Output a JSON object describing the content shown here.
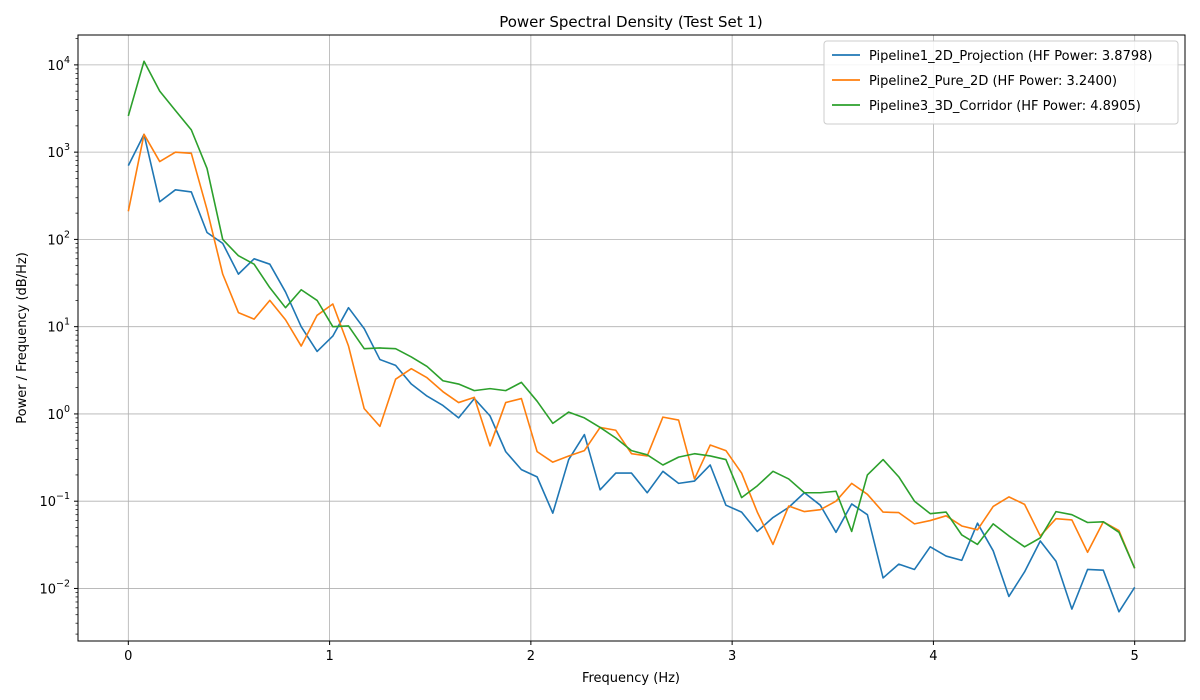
{
  "chart_data": {
    "type": "line",
    "title": "Power Spectral Density (Test Set 1)",
    "xlabel": "Frequency (Hz)",
    "ylabel": "Power / Frequency (dB/Hz)",
    "xlim": [
      -0.25,
      5.25
    ],
    "ylim": [
      0.0025,
      22000
    ],
    "yscale": "log",
    "grid": true,
    "legend_position": "top-right",
    "x_ticks": [
      0,
      1,
      2,
      3,
      4,
      5
    ],
    "x_tick_labels": [
      "0",
      "1",
      "2",
      "3",
      "4",
      "5"
    ],
    "y_ticks": [
      0.01,
      0.1,
      1,
      10,
      100,
      1000,
      10000
    ],
    "y_tick_labels": [
      {
        "base": "10",
        "exp": "−2"
      },
      {
        "base": "10",
        "exp": "−1"
      },
      {
        "base": "10",
        "exp": "0"
      },
      {
        "base": "10",
        "exp": "1"
      },
      {
        "base": "10",
        "exp": "2"
      },
      {
        "base": "10",
        "exp": "3"
      },
      {
        "base": "10",
        "exp": "4"
      }
    ],
    "x": [
      0,
      0.078,
      0.156,
      0.234,
      0.313,
      0.391,
      0.469,
      0.547,
      0.625,
      0.703,
      0.781,
      0.859,
      0.938,
      1.016,
      1.094,
      1.172,
      1.25,
      1.328,
      1.406,
      1.484,
      1.563,
      1.641,
      1.719,
      1.797,
      1.875,
      1.953,
      2.031,
      2.109,
      2.188,
      2.266,
      2.344,
      2.422,
      2.5,
      2.578,
      2.656,
      2.734,
      2.813,
      2.891,
      2.969,
      3.047,
      3.125,
      3.203,
      3.281,
      3.359,
      3.438,
      3.516,
      3.594,
      3.672,
      3.75,
      3.828,
      3.906,
      3.984,
      4.063,
      4.141,
      4.219,
      4.297,
      4.375,
      4.453,
      4.531,
      4.609,
      4.688,
      4.766,
      4.844,
      4.922,
      5.0
    ],
    "series": [
      {
        "name": "Pipeline1_2D_Projection (HF Power: 3.8798)",
        "color": "#1f77b4",
        "values": [
          700,
          1600,
          270,
          370,
          350,
          120,
          90,
          40,
          60,
          52,
          25,
          10,
          5.2,
          7.8,
          16.5,
          9.5,
          4.2,
          3.6,
          2.2,
          1.6,
          1.25,
          0.9,
          1.5,
          0.95,
          0.37,
          0.23,
          0.19,
          0.073,
          0.3,
          0.58,
          0.135,
          0.21,
          0.21,
          0.125,
          0.22,
          0.16,
          0.17,
          0.26,
          0.09,
          0.075,
          0.045,
          0.065,
          0.085,
          0.125,
          0.09,
          0.044,
          0.093,
          0.07,
          0.0132,
          0.019,
          0.0165,
          0.03,
          0.0235,
          0.021,
          0.056,
          0.027,
          0.0081,
          0.0155,
          0.035,
          0.0205,
          0.0058,
          0.0165,
          0.0162,
          0.0054,
          0.0103
        ]
      },
      {
        "name": "Pipeline2_Pure_2D (HF Power: 3.2400)",
        "color": "#ff7f0e",
        "values": [
          210,
          1600,
          780,
          1000,
          970,
          220,
          40,
          14.5,
          12.2,
          20,
          12,
          6,
          13.5,
          18.2,
          6,
          1.15,
          0.72,
          2.5,
          3.3,
          2.6,
          1.8,
          1.35,
          1.55,
          0.43,
          1.35,
          1.5,
          0.37,
          0.28,
          0.33,
          0.38,
          0.7,
          0.65,
          0.35,
          0.33,
          0.92,
          0.85,
          0.18,
          0.44,
          0.38,
          0.21,
          0.075,
          0.032,
          0.088,
          0.076,
          0.08,
          0.1,
          0.16,
          0.12,
          0.075,
          0.074,
          0.055,
          0.06,
          0.068,
          0.052,
          0.047,
          0.087,
          0.112,
          0.092,
          0.04,
          0.063,
          0.061,
          0.026,
          0.058,
          0.046,
          0.017
        ]
      },
      {
        "name": "Pipeline3_3D_Corridor (HF Power: 4.8905)",
        "color": "#2ca02c",
        "values": [
          2600,
          11000,
          5000,
          3000,
          1800,
          650,
          100,
          65,
          52,
          28,
          16.5,
          26.5,
          20,
          10,
          10.2,
          5.6,
          5.7,
          5.6,
          4.5,
          3.5,
          2.4,
          2.2,
          1.85,
          1.95,
          1.85,
          2.3,
          1.4,
          0.78,
          1.05,
          0.9,
          0.7,
          0.53,
          0.38,
          0.34,
          0.26,
          0.32,
          0.35,
          0.33,
          0.3,
          0.11,
          0.15,
          0.22,
          0.18,
          0.125,
          0.125,
          0.13,
          0.045,
          0.2,
          0.3,
          0.19,
          0.1,
          0.072,
          0.075,
          0.041,
          0.032,
          0.055,
          0.04,
          0.03,
          0.038,
          0.076,
          0.07,
          0.057,
          0.058,
          0.044,
          0.017
        ]
      }
    ]
  }
}
